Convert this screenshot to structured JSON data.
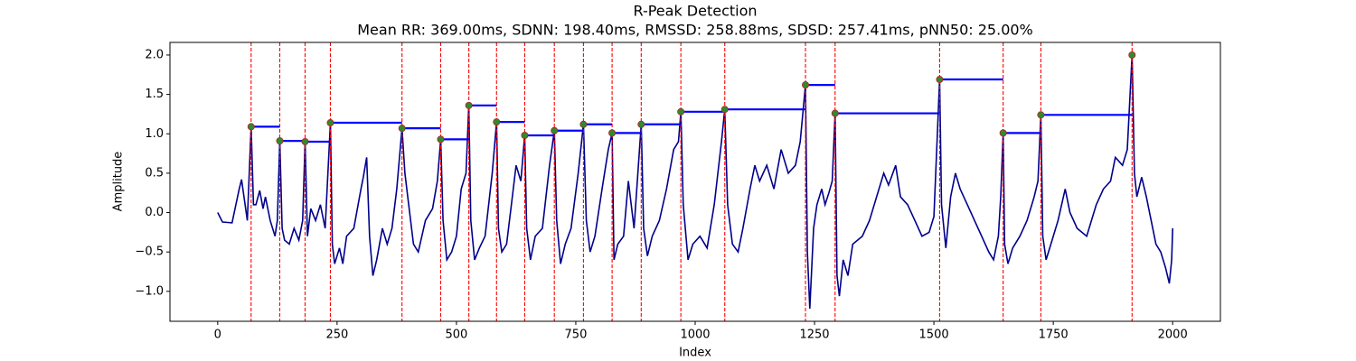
{
  "chart_data": {
    "type": "ecg-peaks",
    "title": "R-Peak Detection",
    "subtitle": "Mean RR: 369.00ms, SDNN: 198.40ms, RMSSD: 258.88ms, SDSD: 257.41ms, pNN50: 25.00%",
    "x_label": "Index",
    "y_label": "Amplitude",
    "xlim": [
      -100,
      2100
    ],
    "ylim": [
      -1.38,
      2.16
    ],
    "xticks": [
      0,
      250,
      500,
      750,
      1000,
      1250,
      1500,
      1750,
      2000
    ],
    "yticks": [
      {
        "value": -1.0,
        "label": "−1.0"
      },
      {
        "value": -0.5,
        "label": "−0.5"
      },
      {
        "value": 0.0,
        "label": "0.0"
      },
      0.5,
      {
        "value": 1.0,
        "label": "1.0"
      },
      1.5,
      {
        "value": 2.0,
        "label": "2.0"
      }
    ],
    "signal": {
      "color": "#00008b",
      "x": [
        0,
        10,
        30,
        45,
        50,
        55,
        62,
        70,
        75,
        80,
        88,
        95,
        100,
        110,
        120,
        125,
        130,
        135,
        140,
        150,
        160,
        170,
        178,
        183,
        188,
        195,
        205,
        215,
        225,
        236,
        240,
        245,
        255,
        262,
        270,
        285,
        300,
        305,
        312,
        318,
        325,
        333,
        345,
        355,
        365,
        375,
        386,
        392,
        400,
        410,
        420,
        435,
        450,
        460,
        467,
        472,
        480,
        490,
        500,
        510,
        520,
        526,
        530,
        538,
        548,
        560,
        575,
        584,
        588,
        595,
        605,
        615,
        625,
        635,
        643,
        647,
        655,
        665,
        680,
        695,
        705,
        710,
        718,
        728,
        740,
        755,
        766,
        772,
        780,
        790,
        805,
        818,
        826,
        830,
        838,
        850,
        860,
        872,
        880,
        887,
        892,
        900,
        910,
        925,
        940,
        955,
        965,
        970,
        975,
        985,
        995,
        1010,
        1025,
        1040,
        1055,
        1062,
        1068,
        1078,
        1090,
        1100,
        1115,
        1125,
        1135,
        1150,
        1165,
        1180,
        1195,
        1210,
        1220,
        1231,
        1235,
        1240,
        1248,
        1255,
        1265,
        1272,
        1280,
        1287,
        1293,
        1297,
        1302,
        1310,
        1320,
        1330,
        1350,
        1365,
        1380,
        1395,
        1405,
        1420,
        1430,
        1445,
        1460,
        1475,
        1490,
        1500,
        1512,
        1516,
        1525,
        1535,
        1545,
        1555,
        1570,
        1585,
        1600,
        1615,
        1625,
        1635,
        1640,
        1645,
        1648,
        1655,
        1665,
        1680,
        1695,
        1710,
        1718,
        1724,
        1728,
        1735,
        1745,
        1760,
        1775,
        1785,
        1800,
        1820,
        1840,
        1855,
        1870,
        1880,
        1895,
        1905,
        1915,
        1920,
        1925,
        1935,
        1945,
        1955,
        1965,
        1975,
        1985,
        1993,
        1998,
        2000
      ],
      "values": [
        0,
        -0.12,
        -0.13,
        0.3,
        0.42,
        0.2,
        -0.1,
        1.09,
        0.1,
        0.1,
        0.28,
        0.05,
        0.2,
        -0.1,
        -0.3,
        -0.1,
        0.91,
        -0.2,
        -0.35,
        -0.4,
        -0.2,
        -0.35,
        -0.1,
        0.9,
        -0.3,
        0.05,
        -0.1,
        0.1,
        -0.2,
        1.14,
        -0.4,
        -0.65,
        -0.45,
        -0.65,
        -0.3,
        -0.2,
        0.3,
        0.45,
        0.7,
        -0.3,
        -0.8,
        -0.6,
        -0.2,
        -0.4,
        -0.2,
        0.3,
        1.07,
        0.5,
        0.1,
        -0.4,
        -0.5,
        -0.1,
        0.05,
        0.4,
        0.93,
        -0.1,
        -0.6,
        -0.5,
        -0.3,
        0.3,
        0.5,
        1.36,
        -0.1,
        -0.6,
        -0.45,
        -0.3,
        0.5,
        1.15,
        -0.2,
        -0.5,
        -0.4,
        0.1,
        0.6,
        0.4,
        0.98,
        -0.2,
        -0.6,
        -0.3,
        -0.2,
        0.6,
        1.04,
        -0.1,
        -0.65,
        -0.4,
        -0.2,
        0.5,
        1.12,
        -0.1,
        -0.5,
        -0.3,
        0.3,
        0.8,
        1.01,
        -0.6,
        -0.4,
        -0.3,
        0.4,
        -0.2,
        0.5,
        1.12,
        -0.2,
        -0.55,
        -0.3,
        -0.1,
        0.3,
        0.8,
        0.9,
        1.28,
        0.1,
        -0.6,
        -0.4,
        -0.3,
        -0.45,
        0.1,
        0.9,
        1.31,
        0.1,
        -0.4,
        -0.5,
        -0.2,
        0.3,
        0.6,
        0.4,
        0.6,
        0.3,
        0.8,
        0.5,
        0.6,
        0.9,
        1.62,
        -0.5,
        -1.22,
        -0.2,
        0.1,
        0.3,
        0.1,
        0.25,
        0.4,
        1.26,
        -0.8,
        -1.06,
        -0.6,
        -0.8,
        -0.4,
        -0.3,
        -0.1,
        0.2,
        0.5,
        0.35,
        0.6,
        0.2,
        0.1,
        -0.1,
        -0.3,
        -0.25,
        -0.05,
        1.69,
        0.1,
        -0.45,
        0.2,
        0.5,
        0.3,
        0.1,
        -0.1,
        -0.3,
        -0.5,
        -0.6,
        -0.3,
        0.2,
        1.01,
        -0.4,
        -0.65,
        -0.45,
        -0.3,
        -0.1,
        0.2,
        0.4,
        1.24,
        -0.3,
        -0.6,
        -0.4,
        -0.1,
        0.3,
        0.0,
        -0.2,
        -0.3,
        0.1,
        0.3,
        0.4,
        0.7,
        0.6,
        0.8,
        2.0,
        0.5,
        0.2,
        0.45,
        0.2,
        -0.1,
        -0.4,
        -0.5,
        -0.7,
        -0.9,
        -0.6,
        -0.2
      ]
    },
    "peaks": {
      "color": "#2e8b2e",
      "edge_color": "#b22222",
      "marker_line_color": "red",
      "interval_color": "#0000ff",
      "x": [
        70,
        130,
        183,
        236,
        386,
        467,
        526,
        584,
        643,
        705,
        766,
        826,
        887,
        970,
        1062,
        1231,
        1293,
        1512,
        1645,
        1724,
        1915
      ],
      "values": [
        1.09,
        0.91,
        0.9,
        1.14,
        1.07,
        0.93,
        1.36,
        1.15,
        0.98,
        1.04,
        1.12,
        1.01,
        1.12,
        1.28,
        1.31,
        1.62,
        1.26,
        1.69,
        1.01,
        1.24,
        2.0
      ]
    }
  }
}
